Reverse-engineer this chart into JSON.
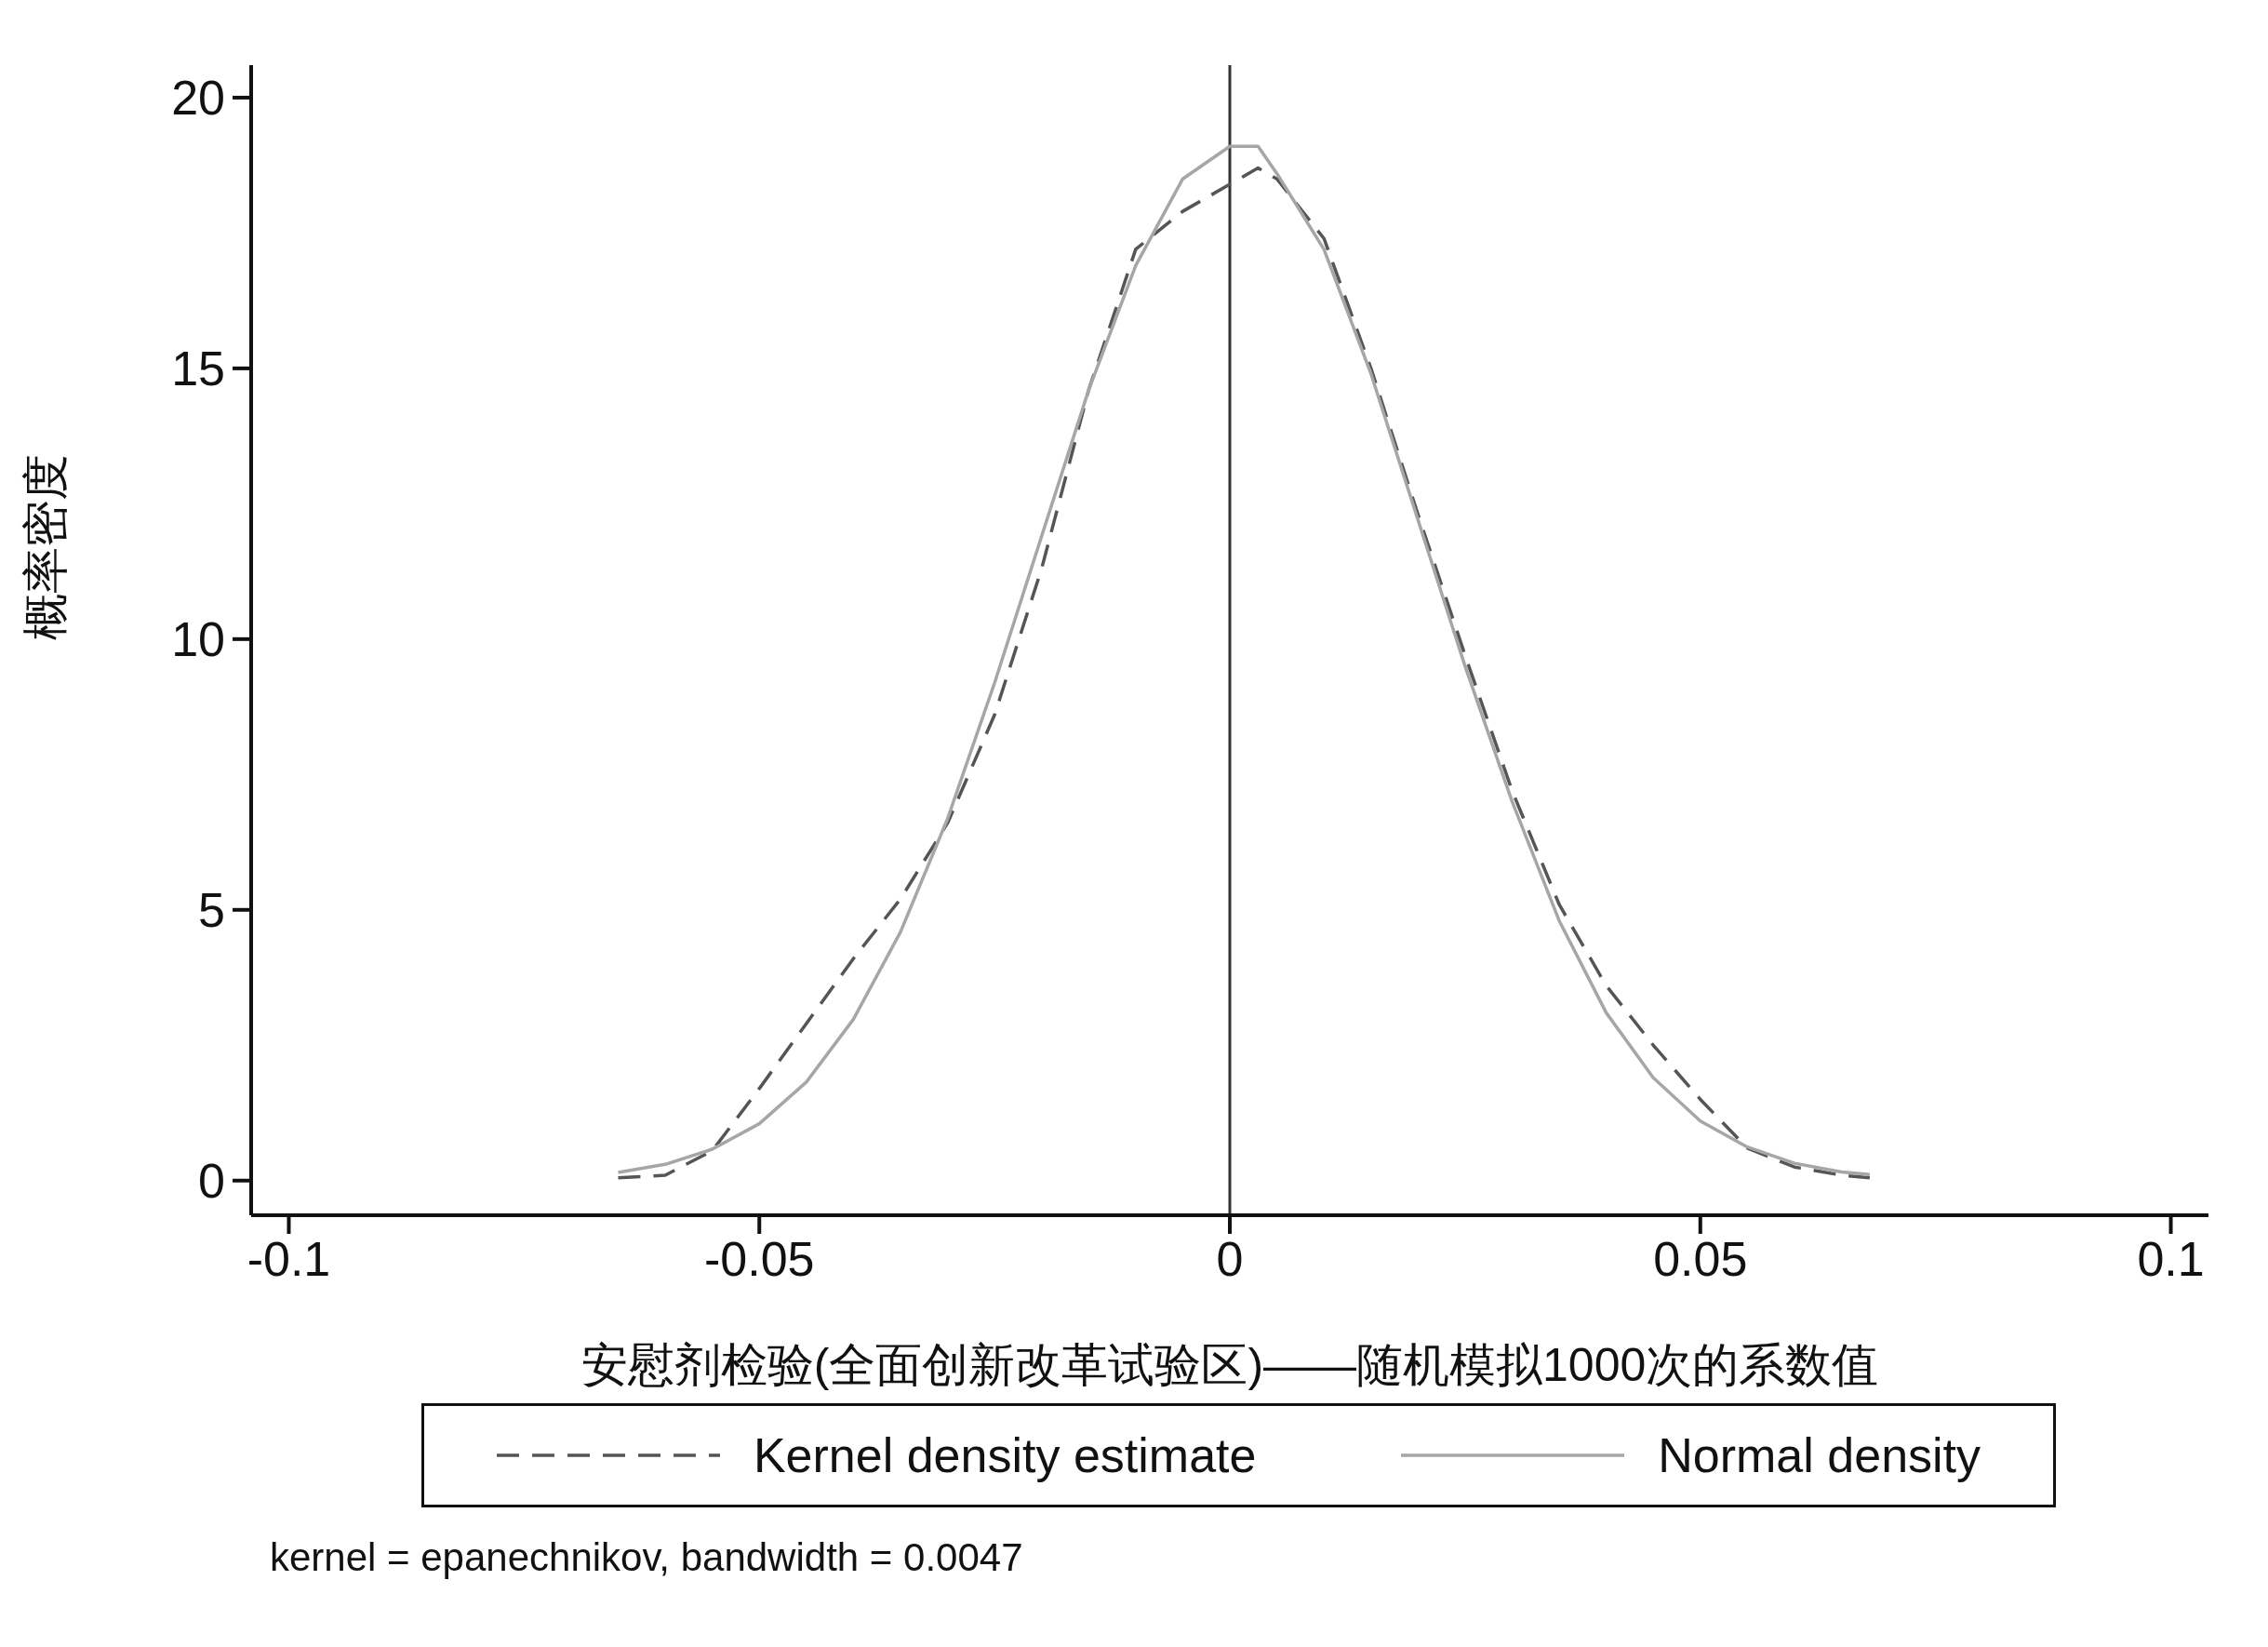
{
  "chart_data": {
    "type": "line",
    "xlabel": "安慰剂检验(全面创新改革试验区)——随机模拟1000次的系数值",
    "ylabel": "概率密度",
    "x": [
      -0.065,
      -0.06,
      -0.055,
      -0.05,
      -0.045,
      -0.04,
      -0.035,
      -0.03,
      -0.025,
      -0.02,
      -0.015,
      -0.01,
      -0.005,
      0,
      0.003,
      0.005,
      0.01,
      0.015,
      0.02,
      0.025,
      0.03,
      0.035,
      0.04,
      0.045,
      0.05,
      0.055,
      0.06,
      0.065,
      0.068
    ],
    "series": [
      {
        "name": "Kernel density estimate",
        "color": "#555555",
        "line_style": "dashed",
        "values": [
          0.05,
          0.1,
          0.55,
          1.7,
          2.9,
          4.1,
          5.2,
          6.6,
          8.6,
          11.3,
          14.6,
          17.2,
          17.9,
          18.4,
          18.7,
          18.5,
          17.4,
          15.0,
          12.3,
          9.7,
          7.2,
          5.1,
          3.6,
          2.5,
          1.5,
          0.6,
          0.25,
          0.1,
          0.05
        ]
      },
      {
        "name": "Normal density",
        "color": "#a6a6a6",
        "line_style": "solid",
        "values": [
          0.15,
          0.3,
          0.58,
          1.05,
          1.82,
          2.98,
          4.59,
          6.68,
          9.19,
          11.9,
          14.6,
          16.9,
          18.5,
          19.1,
          19.1,
          18.6,
          17.2,
          14.9,
          12.2,
          9.5,
          7.0,
          4.8,
          3.1,
          1.9,
          1.1,
          0.62,
          0.32,
          0.16,
          0.11
        ]
      }
    ],
    "xlim": [
      -0.104,
      0.104
    ],
    "xticks": [
      -0.1,
      -0.05,
      0,
      0.05,
      0.1
    ],
    "ylim": [
      -0.64,
      20.6
    ],
    "yticks": [
      0,
      5,
      10,
      15,
      20
    ],
    "grid": false,
    "legend": "bottom",
    "marker": "none",
    "ref_lines": [
      {
        "axis": "x",
        "value": 0,
        "color": "#333333"
      }
    ],
    "annotations": [
      "kernel = epanechnikov, bandwidth = 0.0047"
    ]
  }
}
